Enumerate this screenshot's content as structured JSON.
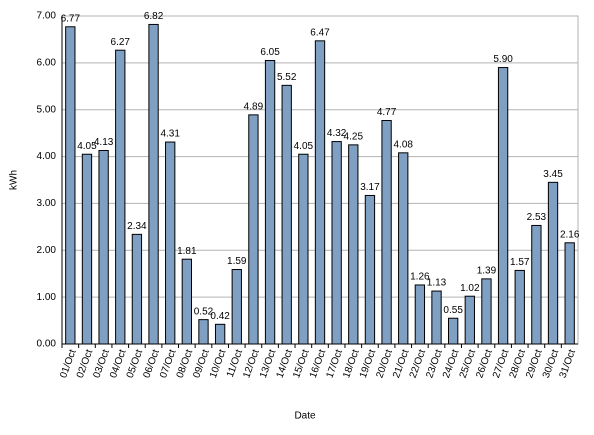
{
  "chart_data": {
    "type": "bar",
    "x_label": "Date",
    "y_label": "kWh",
    "categories": [
      "01/Oct",
      "02/Oct",
      "03/Oct",
      "04/Oct",
      "05/Oct",
      "06/Oct",
      "07/Oct",
      "08/Oct",
      "09/Oct",
      "10/Oct",
      "11/Oct",
      "12/Oct",
      "13/Oct",
      "14/Oct",
      "15/Oct",
      "16/Oct",
      "17/Oct",
      "18/Oct",
      "19/Oct",
      "20/Oct",
      "21/Oct",
      "22/Oct",
      "23/Oct",
      "24/Oct",
      "25/Oct",
      "26/Oct",
      "27/Oct",
      "28/Oct",
      "29/Oct",
      "30/Oct",
      "31/Oct"
    ],
    "values": [
      6.77,
      4.05,
      4.13,
      6.27,
      2.34,
      6.82,
      4.31,
      1.81,
      0.52,
      0.42,
      1.59,
      4.89,
      6.05,
      5.52,
      4.05,
      6.47,
      4.32,
      4.25,
      3.17,
      4.77,
      4.08,
      1.26,
      1.13,
      0.55,
      1.02,
      1.39,
      5.9,
      1.57,
      2.53,
      3.45,
      2.16
    ],
    "value_labels": [
      "6.77",
      "4.05",
      "4.13",
      "6.27",
      "2.34",
      "6.82",
      "4.31",
      "1.81",
      "0.52",
      "0.42",
      "1.59",
      "4.89",
      "6.05",
      "5.52",
      "4.05",
      "6.47",
      "4.32",
      "4.25",
      "3.17",
      "4.77",
      "4.08",
      "1.26",
      "1.13",
      "0.55",
      "1.02",
      "1.39",
      "5.90",
      "1.57",
      "2.53",
      "3.45",
      "2.16"
    ],
    "color": "#7f9fc3",
    "ylim": [
      0,
      7
    ],
    "yticks": [
      {
        "value": 0,
        "label": "0.00"
      },
      {
        "value": 1,
        "label": "1.00"
      },
      {
        "value": 2,
        "label": "2.00"
      },
      {
        "value": 3,
        "label": "3.00"
      },
      {
        "value": 4,
        "label": "4.00"
      },
      {
        "value": 5,
        "label": "5.00"
      },
      {
        "value": 6,
        "label": "6.00"
      },
      {
        "value": 7,
        "label": "7.00"
      }
    ],
    "grid": true
  }
}
